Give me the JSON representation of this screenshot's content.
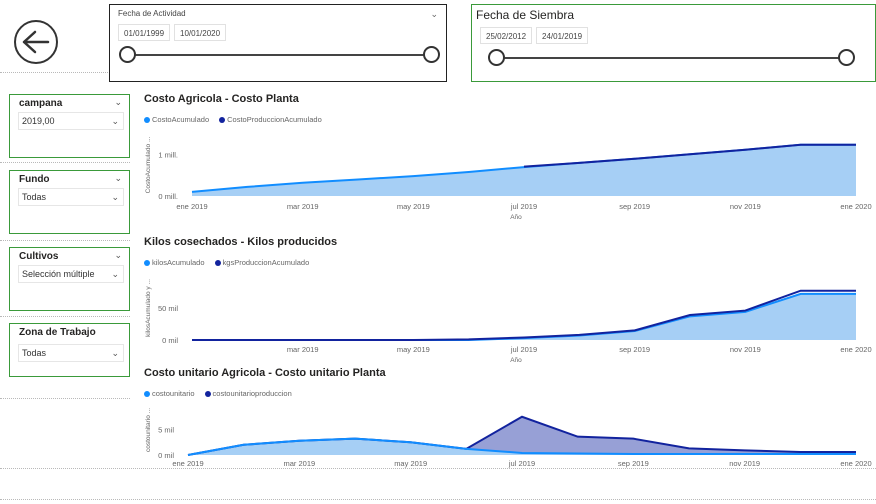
{
  "slicers": {
    "fecha_actividad": {
      "title": "Fecha de Actividad",
      "start": "01/01/1999",
      "end": "10/01/2020"
    },
    "fecha_siembra": {
      "title": "Fecha de Siembra",
      "start": "25/02/2012",
      "end": "24/01/2019"
    }
  },
  "dropdowns": [
    {
      "title": "campana",
      "value": "2019,00"
    },
    {
      "title": "Fundo",
      "value": "Todas"
    },
    {
      "title": "Cultivos",
      "value": "Selección múltiple"
    },
    {
      "title": "Zona de Trabajo",
      "value": "Todas"
    }
  ],
  "colors": {
    "series1": "#118dff",
    "series2": "#12239e",
    "area1": "#a6cff5",
    "area2": "#8c96d2",
    "border_green": "#3a9a3a"
  },
  "chart_data": [
    {
      "type": "area",
      "title": "Costo Agricola - Costo Planta",
      "ylabel": "CostoAcumulado ...",
      "xlabel": "Año",
      "x": [
        "ene 2019",
        "feb 2019",
        "mar 2019",
        "abr 2019",
        "may 2019",
        "jun 2019",
        "jul 2019",
        "ago 2019",
        "sep 2019",
        "oct 2019",
        "nov 2019",
        "dic 2019",
        "ene 2020"
      ],
      "x_tick_labels": [
        "ene 2019",
        "mar 2019",
        "may 2019",
        "jul 2019",
        "sep 2019",
        "nov 2019",
        "ene 2020"
      ],
      "y_ticks": [
        "0 mill.",
        "1 mill."
      ],
      "ylim": [
        0,
        1.5
      ],
      "series": [
        {
          "name": "CostoAcumulado",
          "values": [
            0.1,
            0.22,
            0.32,
            0.4,
            0.48,
            0.58,
            0.7,
            0.8,
            0.9,
            1.01,
            1.12,
            1.24,
            1.24
          ]
        },
        {
          "name": "CostoProduccionAcumulado",
          "values": [
            null,
            null,
            null,
            null,
            null,
            null,
            0.71,
            0.8,
            0.9,
            1.01,
            1.12,
            1.24,
            1.24
          ]
        }
      ]
    },
    {
      "type": "area",
      "title": "Kilos cosechados - Kilos producidos",
      "ylabel": "kilosAcumulado y ...",
      "xlabel": "Año",
      "x": [
        "ene 2019",
        "feb 2019",
        "mar 2019",
        "abr 2019",
        "may 2019",
        "jun 2019",
        "jul 2019",
        "ago 2019",
        "sep 2019",
        "oct 2019",
        "nov 2019",
        "dic 2019",
        "ene 2020"
      ],
      "x_tick_labels": [
        "mar 2019",
        "may 2019",
        "jul 2019",
        "sep 2019",
        "nov 2019",
        "ene 2020"
      ],
      "y_ticks": [
        "0 mil",
        "50 mil"
      ],
      "ylim": [
        0,
        100
      ],
      "series": [
        {
          "name": "kilosAcumulado",
          "values": [
            0,
            0,
            0,
            0,
            0,
            0,
            3,
            7,
            14,
            37,
            44,
            72,
            72
          ]
        },
        {
          "name": "kgsProduccionAcumulado",
          "values": [
            0,
            0,
            0,
            0,
            0,
            1,
            4,
            8,
            15,
            39,
            46,
            77,
            77
          ]
        }
      ]
    },
    {
      "type": "area",
      "title": "Costo unitario Agricola - Costo unitario Planta",
      "ylabel": "costounitario ...",
      "xlabel": "",
      "x": [
        "ene 2019",
        "feb 2019",
        "mar 2019",
        "abr 2019",
        "may 2019",
        "jun 2019",
        "jul 2019",
        "ago 2019",
        "sep 2019",
        "oct 2019",
        "nov 2019",
        "dic 2019",
        "ene 2020"
      ],
      "x_tick_labels": [
        "ene 2019",
        "mar 2019",
        "may 2019",
        "jul 2019",
        "sep 2019",
        "nov 2019",
        "ene 2020"
      ],
      "y_ticks": [
        "0 mil",
        "5 mil"
      ],
      "ylim": [
        0,
        10
      ],
      "series": [
        {
          "name": "costounitario",
          "values": [
            0,
            2.0,
            2.8,
            3.2,
            2.5,
            1.2,
            0.4,
            0.3,
            0.2,
            0.2,
            0.2,
            0.2,
            0.2
          ]
        },
        {
          "name": "costounitarioproduccion",
          "values": [
            0,
            2.0,
            2.8,
            3.2,
            2.5,
            1.2,
            7.5,
            3.6,
            3.2,
            1.3,
            0.9,
            0.6,
            0.6
          ]
        }
      ]
    }
  ]
}
